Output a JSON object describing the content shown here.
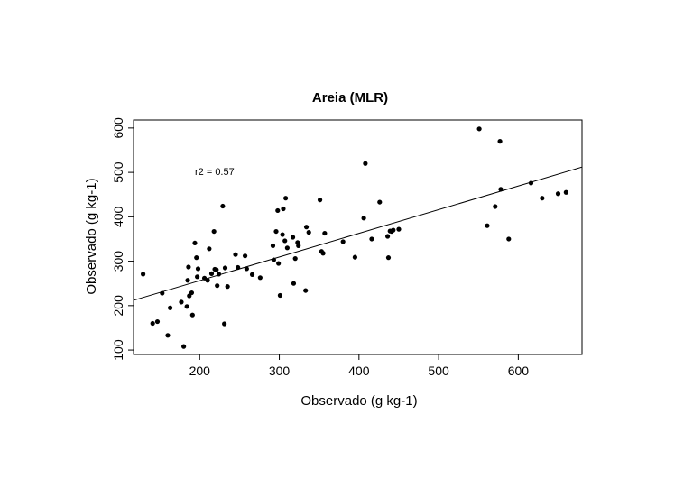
{
  "chart_data": {
    "type": "scatter",
    "title": "Areia (MLR)",
    "xlabel": "Observado (g kg-1)",
    "ylabel": "Observado (g kg-1)",
    "xlim": [
      117,
      680
    ],
    "ylim": [
      90,
      618
    ],
    "xticks": [
      200,
      300,
      400,
      500,
      600
    ],
    "yticks": [
      100,
      200,
      300,
      400,
      500,
      600
    ],
    "grid": false,
    "legend": "none",
    "annotation": "r2 = 0.57",
    "regression_line": {
      "x": [
        117,
        680
      ],
      "y": [
        212,
        512
      ]
    },
    "point_color": "#000000",
    "points": {
      "x": [
        129,
        141,
        147,
        153,
        160,
        163,
        177,
        180,
        184,
        185,
        186,
        187,
        190,
        191,
        194,
        196,
        197,
        198,
        206,
        210,
        212,
        215,
        218,
        219,
        221,
        222,
        224,
        229,
        231,
        232,
        235,
        245,
        248,
        257,
        259,
        266,
        276,
        292,
        293,
        296,
        298,
        299,
        301,
        304,
        305,
        307,
        308,
        310,
        317,
        318,
        320,
        323,
        324,
        333,
        334,
        337,
        351,
        353,
        355,
        357,
        380,
        395,
        406,
        408,
        416,
        426,
        436,
        437,
        439,
        441,
        443,
        450,
        551,
        561,
        571,
        577,
        578,
        588,
        616,
        630,
        650,
        660
      ],
      "y": [
        271,
        160,
        164,
        228,
        133,
        195,
        208,
        108,
        198,
        257,
        287,
        222,
        229,
        179,
        341,
        308,
        265,
        283,
        262,
        257,
        328,
        272,
        367,
        282,
        281,
        245,
        271,
        424,
        159,
        285,
        243,
        315,
        286,
        312,
        283,
        270,
        263,
        335,
        303,
        367,
        414,
        295,
        223,
        360,
        418,
        346,
        442,
        330,
        354,
        250,
        306,
        342,
        335,
        234,
        377,
        365,
        438,
        322,
        318,
        363,
        344,
        309,
        397,
        520,
        350,
        433,
        356,
        308,
        368,
        367,
        370,
        372,
        598,
        380,
        423,
        570,
        462,
        350,
        476,
        442,
        452,
        455
      ]
    }
  }
}
